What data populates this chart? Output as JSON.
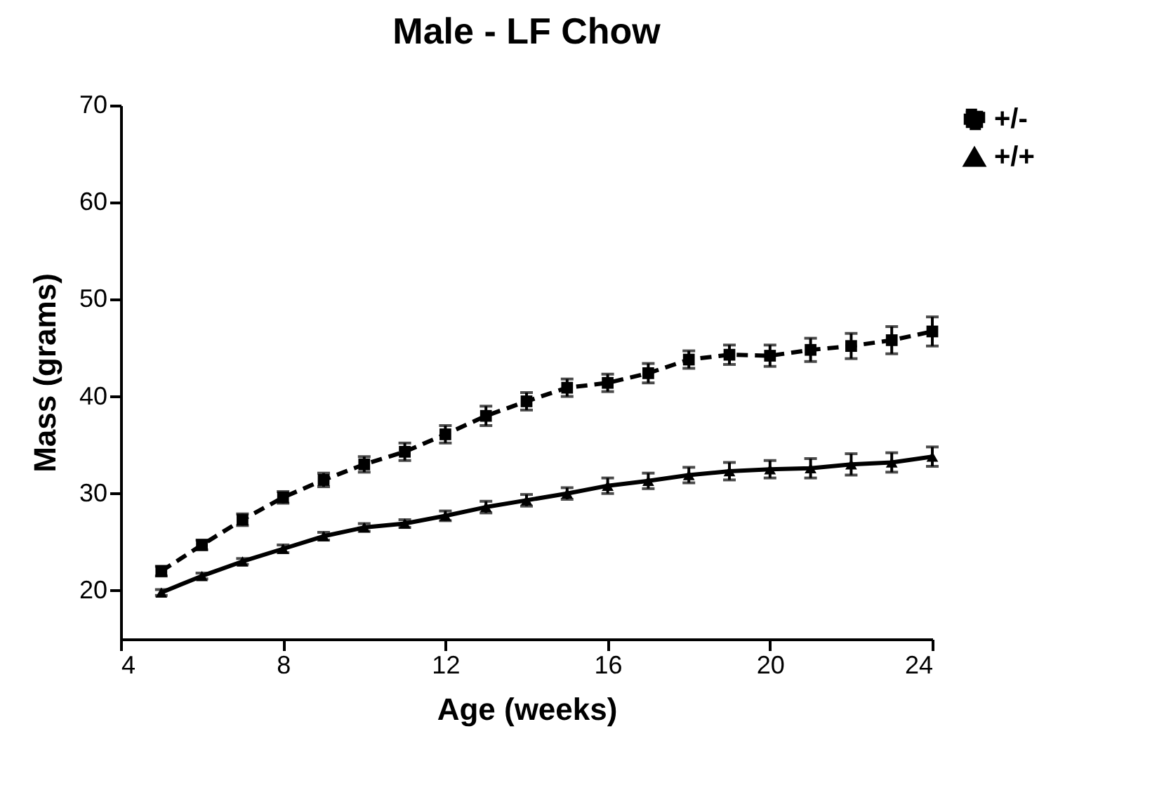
{
  "chart_data": {
    "type": "line",
    "title": "Male - LF Chow",
    "xlabel": "Age (weeks)",
    "ylabel": "Mass (grams)",
    "x": [
      5,
      6,
      7,
      8,
      9,
      10,
      11,
      12,
      13,
      14,
      15,
      16,
      17,
      18,
      19,
      20,
      21,
      22,
      23,
      24
    ],
    "series": [
      {
        "name": "+/-",
        "color": "#000000",
        "marker": "square",
        "line_style": "dashed",
        "values": [
          22.0,
          24.7,
          27.3,
          29.6,
          31.4,
          33.0,
          34.3,
          36.1,
          38.0,
          39.5,
          40.9,
          41.4,
          42.4,
          43.8,
          44.3,
          44.2,
          44.8,
          45.2,
          45.8,
          46.7
        ],
        "errors": [
          0.5,
          0.5,
          0.6,
          0.6,
          0.7,
          0.8,
          0.9,
          0.9,
          1.0,
          0.9,
          0.9,
          0.9,
          1.0,
          0.9,
          1.0,
          1.1,
          1.2,
          1.3,
          1.4,
          1.5
        ]
      },
      {
        "name": "+/+",
        "color": "#000000",
        "marker": "triangle",
        "line_style": "solid",
        "values": [
          19.8,
          21.5,
          23.0,
          24.3,
          25.6,
          26.5,
          26.9,
          27.7,
          28.6,
          29.3,
          30.0,
          30.8,
          31.3,
          31.9,
          32.3,
          32.5,
          32.6,
          33.0,
          33.2,
          33.8
        ],
        "errors": [
          0.3,
          0.3,
          0.3,
          0.4,
          0.4,
          0.4,
          0.4,
          0.5,
          0.6,
          0.6,
          0.6,
          0.8,
          0.8,
          0.8,
          0.9,
          0.9,
          1.0,
          1.1,
          1.0,
          1.0
        ]
      }
    ],
    "xlim": [
      4,
      24
    ],
    "xticks": [
      4,
      8,
      12,
      16,
      20,
      24
    ],
    "ylim": [
      15,
      70
    ],
    "yticks": [
      20,
      30,
      40,
      50,
      60,
      70
    ],
    "grid": false,
    "legend": "top right"
  }
}
